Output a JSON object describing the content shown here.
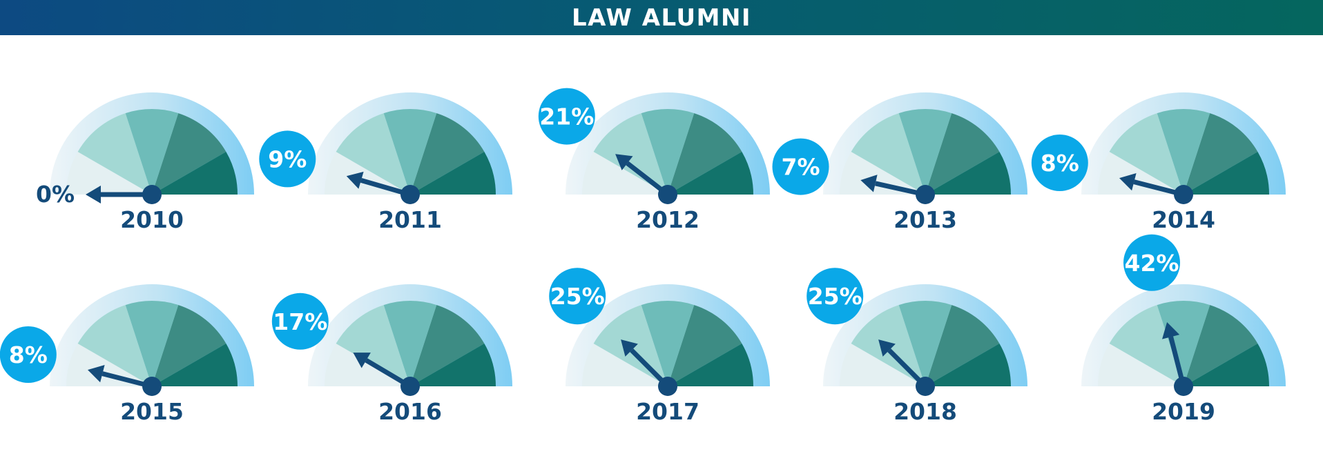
{
  "header": {
    "title": "LAW ALUMNI"
  },
  "colors": {
    "header_start": "#0d4a82",
    "header_end": "#05665e",
    "needle": "#144b7a",
    "badge": "#0aa8e8",
    "label": "#144b7a",
    "band_1": "#e4f0f2",
    "band_2": "#a3d8d4",
    "band_3": "#6ebcb9",
    "band_4": "#3d8c84",
    "band_5": "#12736b",
    "rim": "#8cd0f2"
  },
  "chart_data": {
    "type": "gauge",
    "title": "LAW ALUMNI",
    "scale": [
      0,
      100
    ],
    "gauges": [
      {
        "year": "2010",
        "value": 0,
        "label": "0%",
        "badge": false
      },
      {
        "year": "2011",
        "value": 9,
        "label": "9%",
        "badge": true
      },
      {
        "year": "2012",
        "value": 21,
        "label": "21%",
        "badge": true
      },
      {
        "year": "2013",
        "value": 7,
        "label": "7%",
        "badge": true
      },
      {
        "year": "2014",
        "value": 8,
        "label": "8%",
        "badge": true
      },
      {
        "year": "2015",
        "value": 8,
        "label": "8%",
        "badge": true
      },
      {
        "year": "2016",
        "value": 17,
        "label": "17%",
        "badge": true
      },
      {
        "year": "2017",
        "value": 25,
        "label": "25%",
        "badge": true
      },
      {
        "year": "2018",
        "value": 25,
        "label": "25%",
        "badge": true
      },
      {
        "year": "2019",
        "value": 42,
        "label": "42%",
        "badge": true
      }
    ]
  }
}
